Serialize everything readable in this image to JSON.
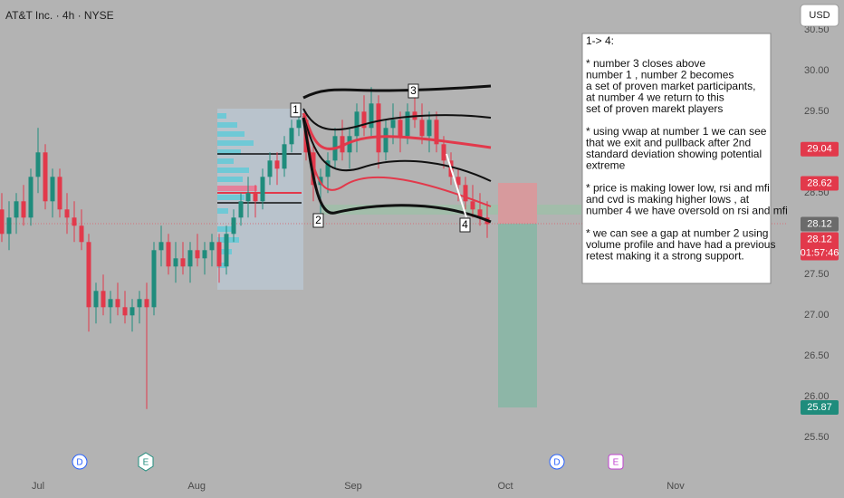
{
  "chart_data": {
    "type": "candlestick",
    "title": "AT&T Inc. · 4h · NYSE",
    "currency": "USD",
    "x": [
      -5,
      -4,
      -3,
      -2,
      -1,
      0,
      1,
      2,
      3,
      4,
      5,
      6,
      7,
      8,
      9,
      10,
      11,
      12,
      13,
      14,
      15,
      16,
      17,
      18,
      19,
      20,
      21,
      22,
      23,
      24,
      25,
      26,
      27,
      28,
      29,
      30,
      31,
      32,
      33,
      34,
      35,
      36,
      37,
      38,
      39,
      40,
      41,
      42,
      43,
      44,
      45,
      46,
      47,
      48,
      49,
      50,
      51,
      52,
      53,
      54,
      55,
      56,
      57,
      58,
      59,
      60,
      61,
      62
    ],
    "open": [
      28.3,
      28.0,
      28.2,
      28.4,
      28.2,
      28.7,
      29.0,
      28.4,
      28.7,
      28.3,
      28.2,
      28.1,
      27.9,
      27.1,
      27.3,
      27.1,
      27.2,
      27.1,
      27.0,
      27.1,
      27.2,
      27.1,
      27.8,
      27.9,
      27.6,
      27.7,
      27.6,
      27.8,
      27.7,
      27.8,
      27.9,
      27.6,
      28.0,
      28.2,
      28.4,
      28.5,
      28.4,
      28.7,
      28.9,
      28.8,
      29.1,
      29.3,
      29.4,
      29.0,
      28.6,
      28.7,
      28.9,
      29.2,
      29.0,
      29.2,
      29.5,
      29.3,
      29.6,
      29.0,
      29.3,
      29.4,
      29.2,
      29.5,
      29.4,
      29.2,
      29.4,
      29.1,
      28.9,
      28.7,
      28.6,
      28.4,
      28.3,
      28.2
    ],
    "high": [
      28.5,
      28.4,
      28.5,
      28.6,
      28.8,
      29.3,
      29.1,
      28.8,
      28.8,
      28.5,
      28.4,
      28.3,
      28.0,
      27.4,
      27.5,
      27.3,
      27.4,
      27.3,
      27.2,
      27.3,
      27.4,
      27.9,
      28.1,
      28.0,
      27.9,
      27.9,
      27.9,
      28.0,
      27.9,
      28.0,
      28.0,
      28.1,
      28.3,
      28.5,
      28.7,
      28.6,
      28.8,
      29.0,
      29.0,
      29.2,
      29.4,
      29.6,
      29.5,
      29.1,
      28.8,
      29.0,
      29.3,
      29.4,
      29.3,
      29.6,
      29.7,
      29.8,
      29.7,
      29.4,
      29.6,
      29.5,
      29.6,
      29.7,
      29.6,
      29.5,
      29.5,
      29.2,
      29.0,
      28.8,
      28.7,
      28.6,
      28.5,
      28.4
    ],
    "low": [
      27.9,
      27.8,
      28.0,
      28.1,
      28.1,
      28.5,
      28.3,
      28.2,
      28.2,
      28.0,
      27.9,
      27.8,
      26.8,
      26.9,
      27.0,
      26.9,
      27.0,
      26.9,
      26.8,
      26.9,
      25.85,
      27.0,
      27.6,
      27.5,
      27.4,
      27.5,
      27.4,
      27.6,
      27.5,
      27.6,
      27.4,
      27.5,
      27.9,
      28.1,
      28.2,
      28.2,
      28.3,
      28.6,
      28.6,
      28.7,
      29.0,
      29.2,
      28.9,
      28.4,
      28.2,
      28.5,
      28.8,
      28.9,
      28.8,
      29.0,
      29.2,
      29.2,
      28.8,
      28.9,
      29.1,
      29.0,
      29.1,
      29.3,
      29.1,
      29.0,
      29.0,
      28.8,
      28.6,
      28.4,
      28.3,
      28.2,
      28.1,
      27.95
    ],
    "close": [
      28.0,
      28.2,
      28.4,
      28.2,
      28.7,
      29.0,
      28.4,
      28.7,
      28.3,
      28.2,
      28.1,
      27.9,
      27.1,
      27.3,
      27.1,
      27.2,
      27.1,
      27.0,
      27.1,
      27.2,
      27.1,
      27.8,
      27.9,
      27.6,
      27.7,
      27.6,
      27.8,
      27.7,
      27.8,
      27.9,
      27.6,
      28.0,
      28.2,
      28.4,
      28.5,
      28.4,
      28.7,
      28.9,
      28.8,
      29.1,
      29.3,
      29.4,
      29.0,
      28.6,
      28.7,
      28.9,
      29.2,
      29.0,
      29.2,
      29.5,
      29.3,
      29.6,
      29.0,
      29.3,
      29.4,
      29.2,
      29.5,
      29.4,
      29.2,
      29.4,
      29.1,
      28.9,
      28.7,
      28.6,
      28.4,
      28.3,
      28.2,
      28.12
    ],
    "up_color": "#1f8c7c",
    "down_color": "#e2394b",
    "xlim": [
      -5.25,
      103.5
    ],
    "xticks": [
      {
        "value": 0,
        "label": "Jul"
      },
      {
        "value": 21.9,
        "label": "Aug"
      },
      {
        "value": 43.5,
        "label": "Sep"
      },
      {
        "value": 64.5,
        "label": "Oct"
      },
      {
        "value": 88,
        "label": "Nov"
      }
    ],
    "ylim": [
      25.07,
      30.87
    ],
    "yticks": [
      {
        "value": 25.5,
        "label": "25.50"
      },
      {
        "value": 26,
        "label": "26.00"
      },
      {
        "value": 26.5,
        "label": "26.50"
      },
      {
        "value": 27,
        "label": "27.00"
      },
      {
        "value": 27.5,
        "label": "27.50"
      },
      {
        "value": 28.5,
        "label": "28.50"
      },
      {
        "value": 29.5,
        "label": "29.50"
      },
      {
        "value": 30,
        "label": "30.00"
      },
      {
        "value": 30.5,
        "label": "30.50"
      }
    ],
    "price_labels": [
      29.04,
      28.62,
      28.12,
      28.12,
      25.87
    ],
    "price_label_colors": [
      "#e2394b",
      "#e2394b",
      "#6b6b6b",
      "#e2394b",
      "#1f8c7c"
    ],
    "countdown": "01:57:46",
    "markers": [
      "1",
      "2",
      "3",
      "4"
    ],
    "events": [
      "D",
      "E",
      "D",
      "E"
    ],
    "annotation": [
      [
        "1-> 4:"
      ],
      [
        "* number 3 closes above",
        "number 1 , number 2 becomes",
        "a set of proven market participants,",
        "at number 4 we return to this",
        "set of proven marekt players"
      ],
      [
        "* using vwap at number 1 we can see",
        "that we exit and pullback after 2nd",
        "standard deviation showing potential",
        "extreme"
      ],
      [
        "* price is making lower low, rsi and mfi",
        "and cvd is making higher lows , at",
        "number 4 we have oversold on rsi and mfi"
      ],
      [
        "* we can see a gap at number 2 using",
        "volume profile and have had a previous",
        "retest making it a strong support."
      ]
    ]
  }
}
